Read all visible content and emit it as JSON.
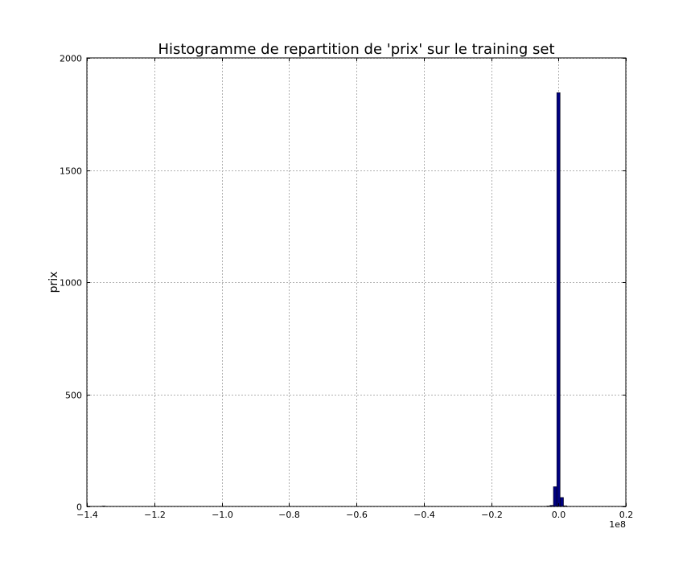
{
  "chart_data": {
    "type": "bar",
    "title": "Histogramme de repartition de 'prix' sur le training set",
    "xlabel": "",
    "ylabel": "prix",
    "x_offset_label": "1e8",
    "xlim": [
      -1.4,
      0.2
    ],
    "ylim": [
      0,
      2000
    ],
    "x_ticks": [
      -1.4,
      -1.2,
      -1.0,
      -0.8,
      -0.6,
      -0.4,
      -0.2,
      0.0,
      0.2
    ],
    "x_tick_labels": [
      "−1.4",
      "−1.2",
      "−1.0",
      "−0.8",
      "−0.6",
      "−0.4",
      "−0.2",
      "0.0",
      "0.2"
    ],
    "y_ticks": [
      0,
      500,
      1000,
      1500,
      2000
    ],
    "y_tick_labels": [
      "0",
      "500",
      "1000",
      "1500",
      "2000"
    ],
    "grid": true,
    "bar_color": "#00007f",
    "bars": [
      {
        "x0": -1.355,
        "x1": -1.345,
        "count": 2
      },
      {
        "x0": -0.035,
        "x1": -0.025,
        "count": 2
      },
      {
        "x0": -0.025,
        "x1": -0.015,
        "count": 5
      },
      {
        "x0": -0.015,
        "x1": -0.005,
        "count": 88
      },
      {
        "x0": -0.005,
        "x1": 0.005,
        "count": 1845
      },
      {
        "x0": 0.005,
        "x1": 0.015,
        "count": 40
      },
      {
        "x0": 0.015,
        "x1": 0.025,
        "count": 3
      }
    ]
  }
}
